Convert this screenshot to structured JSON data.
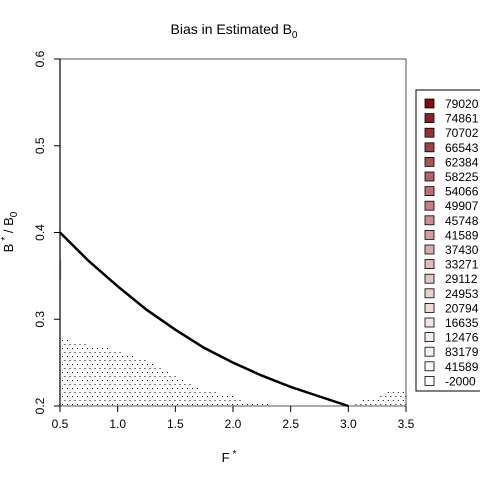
{
  "chart_data": {
    "type": "line",
    "title": "Bias in Estimated B",
    "title_subscript": "0",
    "xlabel": "F",
    "xlabel_superscript": "*",
    "ylabel": "B",
    "ylabel_superscript": "*",
    "ylabel_divider": " / B",
    "ylabel_subscript": "0",
    "xlim": [
      0.5,
      3.5
    ],
    "ylim": [
      0.2,
      0.6
    ],
    "x_ticks": [
      0.5,
      1.0,
      1.5,
      2.0,
      2.5,
      3.0,
      3.5
    ],
    "x_tick_labels": [
      "0.5",
      "1.0",
      "1.5",
      "2.0",
      "2.5",
      "3.0",
      "3.5"
    ],
    "y_ticks": [
      0.2,
      0.3,
      0.4,
      0.5,
      0.6
    ],
    "y_tick_labels": [
      "0.2",
      "0.3",
      "0.4",
      "0.5",
      "0.6"
    ],
    "grid": false,
    "legend_placement": "right",
    "series": [
      {
        "values_x": [
          0.5,
          0.75,
          1.0,
          1.25,
          1.5,
          1.75,
          2.0,
          2.25,
          2.5,
          2.75,
          3.0
        ],
        "values_y": [
          0.4,
          0.367,
          0.338,
          0.311,
          0.288,
          0.267,
          0.25,
          0.235,
          0.222,
          0.211,
          0.2
        ],
        "color": "#000000"
      }
    ],
    "stipple_regions": [
      {
        "x": [
          0.5,
          0.52,
          0.6,
          0.7,
          0.8,
          0.9,
          1.0,
          1.1,
          1.2,
          1.3,
          1.4,
          1.5,
          1.6,
          1.7,
          1.8,
          1.9,
          2.0,
          2.1,
          2.2,
          2.3
        ],
        "y_top": [
          0.28,
          0.28,
          0.275,
          0.272,
          0.27,
          0.268,
          0.265,
          0.26,
          0.255,
          0.25,
          0.242,
          0.235,
          0.228,
          0.22,
          0.22,
          0.213,
          0.213,
          0.206,
          0.206,
          0.204
        ]
      },
      {
        "x": [
          3.0,
          3.1,
          3.2,
          3.3,
          3.4,
          3.5
        ],
        "y_top": [
          0.2,
          0.206,
          0.21,
          0.214,
          0.22,
          0.22
        ]
      }
    ],
    "contour_marks": [
      {
        "x": 0.5,
        "y_from": 0.345,
        "y_to": 0.368,
        "color": "#d8a6a6"
      }
    ],
    "legend": [
      {
        "label": "79020",
        "color": "#7a0f14"
      },
      {
        "label": "74861",
        "color": "#86242a"
      },
      {
        "label": "70702",
        "color": "#903438"
      },
      {
        "label": "66543",
        "color": "#9a4449"
      },
      {
        "label": "62384",
        "color": "#a45459"
      },
      {
        "label": "58225",
        "color": "#ae6468"
      },
      {
        "label": "54066",
        "color": "#b77377"
      },
      {
        "label": "49907",
        "color": "#c08286"
      },
      {
        "label": "45748",
        "color": "#c89195"
      },
      {
        "label": "41589",
        "color": "#d09fa2"
      },
      {
        "label": "37430",
        "color": "#d7adaf"
      },
      {
        "label": "33271",
        "color": "#ddbabc"
      },
      {
        "label": "29112",
        "color": "#e3c6c8"
      },
      {
        "label": "24953",
        "color": "#e8d1d2"
      },
      {
        "label": "20794",
        "color": "#eddbdc"
      },
      {
        "label": "16635",
        "color": "#f1e4e5"
      },
      {
        "label": "12476",
        "color": "#f5ecec"
      },
      {
        "label": "83179",
        "color": "#f8f2f2"
      },
      {
        "label": "41589",
        "color": "#fbf7f7"
      },
      {
        "label": "-2000",
        "color": "#ffffff"
      }
    ]
  }
}
